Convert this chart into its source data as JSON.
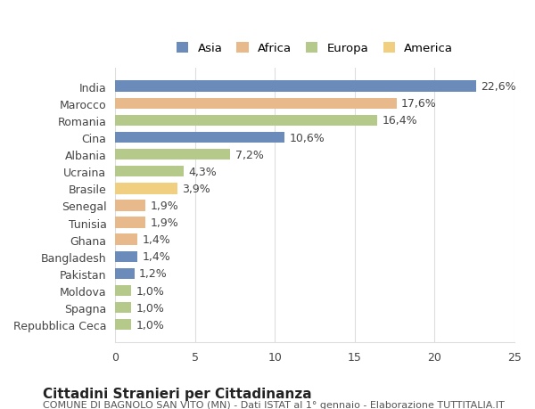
{
  "countries": [
    "India",
    "Marocco",
    "Romania",
    "Cina",
    "Albania",
    "Ucraina",
    "Brasile",
    "Senegal",
    "Tunisia",
    "Ghana",
    "Bangladesh",
    "Pakistan",
    "Moldova",
    "Spagna",
    "Repubblica Ceca"
  ],
  "values": [
    22.6,
    17.6,
    16.4,
    10.6,
    7.2,
    4.3,
    3.9,
    1.9,
    1.9,
    1.4,
    1.4,
    1.2,
    1.0,
    1.0,
    1.0
  ],
  "labels": [
    "22,6%",
    "17,6%",
    "16,4%",
    "10,6%",
    "7,2%",
    "4,3%",
    "3,9%",
    "1,9%",
    "1,9%",
    "1,4%",
    "1,4%",
    "1,2%",
    "1,0%",
    "1,0%",
    "1,0%"
  ],
  "continents": [
    "Asia",
    "Africa",
    "Europa",
    "Asia",
    "Europa",
    "Europa",
    "America",
    "Africa",
    "Africa",
    "Africa",
    "Asia",
    "Asia",
    "Europa",
    "Europa",
    "Europa"
  ],
  "colors": {
    "Asia": "#6b8cba",
    "Africa": "#e8b98a",
    "Europa": "#b5c98a",
    "America": "#f0d080"
  },
  "xlim": [
    0,
    25
  ],
  "xticks": [
    0,
    5,
    10,
    15,
    20,
    25
  ],
  "title": "Cittadini Stranieri per Cittadinanza",
  "subtitle": "COMUNE DI BAGNOLO SAN VITO (MN) - Dati ISTAT al 1° gennaio - Elaborazione TUTTITALIA.IT",
  "bg_color": "#ffffff",
  "grid_color": "#dddddd",
  "bar_height": 0.65,
  "label_fontsize": 9,
  "tick_fontsize": 9,
  "title_fontsize": 11,
  "subtitle_fontsize": 8,
  "legend_order": [
    "Asia",
    "Africa",
    "Europa",
    "America"
  ]
}
